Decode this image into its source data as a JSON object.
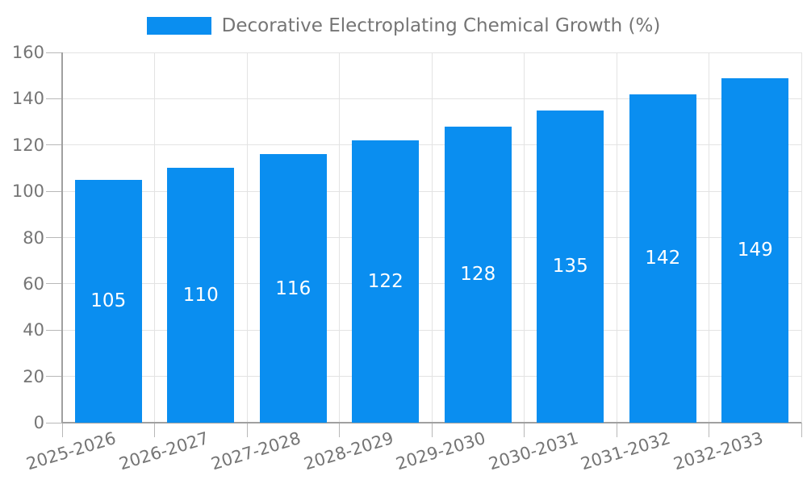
{
  "legend": {
    "label": "Decorative Electroplating Chemical Growth (%)"
  },
  "colors": {
    "bar": "#0a8ef0",
    "bar_value_text": "#ffffff",
    "axis_line": "#a0a0a0",
    "grid_line": "#e3e3e3",
    "tick_mark": "#b8b8b8",
    "axis_text": "#757575",
    "legend_text": "#757575",
    "background": "#ffffff"
  },
  "chart_data": {
    "type": "bar",
    "title": "Decorative Electroplating Chemical Growth (%)",
    "categories": [
      "2025-2026",
      "2026-2027",
      "2027-2028",
      "2028-2029",
      "2029-2030",
      "2030-2031",
      "2031-2032",
      "2032-2033"
    ],
    "values": [
      105,
      110,
      116,
      122,
      128,
      135,
      142,
      149
    ],
    "series": [
      {
        "name": "Decorative Electroplating Chemical Growth (%)",
        "values": [
          105,
          110,
          116,
          122,
          128,
          135,
          142,
          149
        ]
      }
    ],
    "xlabel": "",
    "ylabel": "",
    "ylim": [
      0,
      160
    ],
    "yticks": [
      0,
      20,
      40,
      60,
      80,
      100,
      120,
      140,
      160
    ],
    "grid": true,
    "legend_position": "top-center",
    "value_labels_position": "inside-center",
    "x_label_rotation_deg": -17
  }
}
